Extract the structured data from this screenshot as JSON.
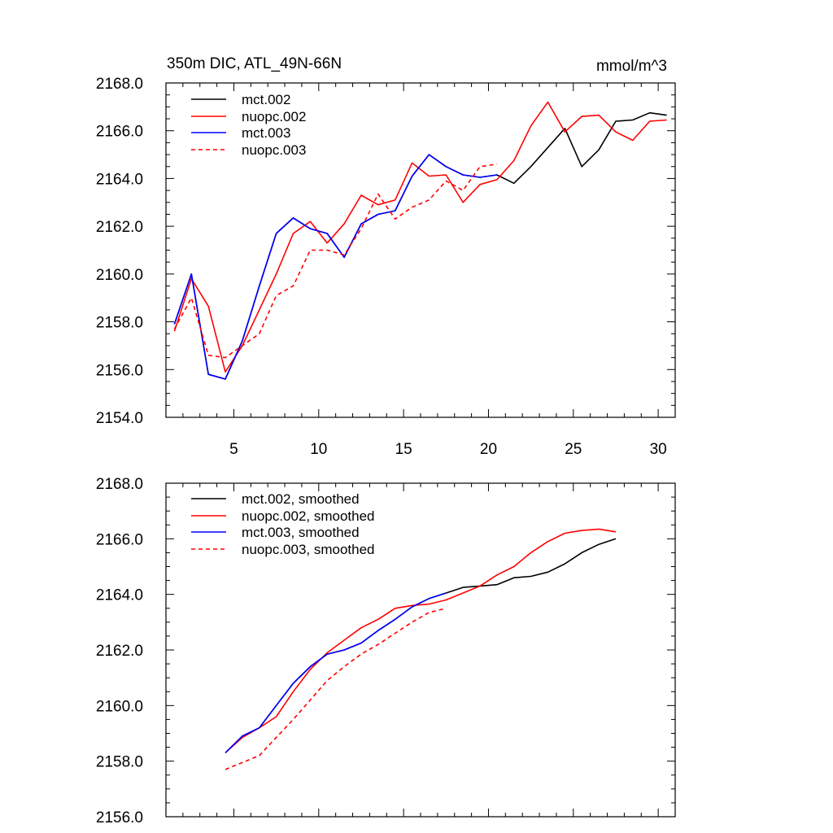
{
  "chart_data": [
    {
      "type": "line",
      "title": "350m DIC, ATL_49N-66N",
      "units": "mmol/m^3",
      "xlabel": "",
      "ylabel": "",
      "xlim": [
        1,
        31
      ],
      "ylim": [
        2154,
        2168
      ],
      "xticks": [
        5,
        10,
        15,
        20,
        25,
        30
      ],
      "xtick_labels": [
        "5",
        "10",
        "15",
        "20",
        "25",
        "30"
      ],
      "yticks": [
        2154,
        2156,
        2158,
        2160,
        2162,
        2164,
        2166,
        2168
      ],
      "ytick_labels": [
        "2154.0",
        "2156.0",
        "2158.0",
        "2160.0",
        "2162.0",
        "2164.0",
        "2166.0",
        "2168.0"
      ],
      "legend_position": "top-left",
      "series": [
        {
          "name": "mct.002",
          "color": "#000000",
          "dash": "solid",
          "x": [
            1.5,
            2.5,
            3.5,
            4.5,
            5.5,
            6.5,
            7.5,
            8.5,
            9.5,
            10.5,
            11.5,
            12.5,
            13.5,
            14.5,
            15.5,
            16.5,
            17.5,
            18.5,
            19.5,
            20.5,
            21.5,
            22.5,
            23.5,
            24.5,
            25.5,
            26.5,
            27.5,
            28.5,
            29.5,
            30.5
          ],
          "values": [
            2157.9,
            2160.0,
            2155.8,
            2155.6,
            2157.2,
            2159.5,
            2161.7,
            2162.35,
            2161.9,
            2161.7,
            2160.7,
            2162.1,
            2162.5,
            2162.65,
            2164.1,
            2165.0,
            2164.5,
            2164.15,
            2164.05,
            2164.15,
            2163.8,
            2164.5,
            2165.3,
            2166.1,
            2164.5,
            2165.2,
            2166.4,
            2166.45,
            2166.75,
            2166.65
          ]
        },
        {
          "name": "nuopc.002",
          "color": "#ff0000",
          "dash": "solid",
          "x": [
            1.5,
            2.5,
            3.5,
            4.5,
            5.5,
            6.5,
            7.5,
            8.5,
            9.5,
            10.5,
            11.5,
            12.5,
            13.5,
            14.5,
            15.5,
            16.5,
            17.5,
            18.5,
            19.5,
            20.5,
            21.5,
            22.5,
            23.5,
            24.5,
            25.5,
            26.5,
            27.5,
            28.5,
            29.5,
            30.5
          ],
          "values": [
            2157.6,
            2159.8,
            2158.65,
            2155.9,
            2157.0,
            2158.5,
            2160.0,
            2161.7,
            2162.2,
            2161.3,
            2162.1,
            2163.3,
            2162.9,
            2163.1,
            2164.65,
            2164.1,
            2164.15,
            2163.0,
            2163.75,
            2163.95,
            2164.75,
            2166.2,
            2167.2,
            2165.95,
            2166.6,
            2166.65,
            2165.95,
            2165.6,
            2166.4,
            2166.45
          ]
        },
        {
          "name": "mct.003",
          "color": "#0000ff",
          "dash": "solid",
          "x": [
            1.5,
            2.5,
            3.5,
            4.5,
            5.5,
            6.5,
            7.5,
            8.5,
            9.5,
            10.5,
            11.5,
            12.5,
            13.5,
            14.5,
            15.5,
            16.5,
            17.5,
            18.5,
            19.5,
            20.5
          ],
          "values": [
            2157.9,
            2160.0,
            2155.8,
            2155.6,
            2157.2,
            2159.5,
            2161.7,
            2162.35,
            2161.9,
            2161.7,
            2160.7,
            2162.1,
            2162.5,
            2162.65,
            2164.1,
            2165.0,
            2164.5,
            2164.15,
            2164.05,
            2164.15
          ]
        },
        {
          "name": "nuopc.003",
          "color": "#ff0000",
          "dash": "dashed",
          "x": [
            1.5,
            2.5,
            3.5,
            4.5,
            5.5,
            6.5,
            7.5,
            8.5,
            9.5,
            10.5,
            11.5,
            12.5,
            13.5,
            14.5,
            15.5,
            16.5,
            17.5,
            18.5,
            19.5,
            20.5
          ],
          "values": [
            2157.7,
            2159.0,
            2156.6,
            2156.5,
            2157.0,
            2157.5,
            2159.1,
            2159.5,
            2161.0,
            2161.0,
            2160.8,
            2161.9,
            2163.35,
            2162.3,
            2162.8,
            2163.1,
            2163.9,
            2163.5,
            2164.5,
            2164.6
          ]
        }
      ]
    },
    {
      "type": "line",
      "title": "",
      "xlabel": "",
      "ylabel": "",
      "xlim": [
        1,
        31
      ],
      "ylim": [
        2156,
        2168
      ],
      "xticks": [
        5,
        10,
        15,
        20,
        25,
        30
      ],
      "yticks": [
        2156,
        2158,
        2160,
        2162,
        2164,
        2166,
        2168
      ],
      "ytick_labels": [
        "2156.0",
        "2158.0",
        "2160.0",
        "2162.0",
        "2164.0",
        "2166.0",
        "2168.0"
      ],
      "legend_position": "top-left",
      "series": [
        {
          "name": "mct.002, smoothed",
          "color": "#000000",
          "dash": "solid",
          "x": [
            4.5,
            5.5,
            6.5,
            7.5,
            8.5,
            9.5,
            10.5,
            11.5,
            12.5,
            13.5,
            14.5,
            15.5,
            16.5,
            17.5,
            18.5,
            19.5,
            20.5,
            21.5,
            22.5,
            23.5,
            24.5,
            25.5,
            26.5,
            27.5
          ],
          "values": [
            2158.3,
            2158.9,
            2159.2,
            2160.0,
            2160.8,
            2161.4,
            2161.85,
            2162.0,
            2162.25,
            2162.7,
            2163.1,
            2163.55,
            2163.85,
            2164.05,
            2164.25,
            2164.3,
            2164.35,
            2164.6,
            2164.65,
            2164.8,
            2165.1,
            2165.5,
            2165.8,
            2166.0
          ]
        },
        {
          "name": "nuopc.002, smoothed",
          "color": "#ff0000",
          "dash": "solid",
          "x": [
            4.5,
            5.5,
            6.5,
            7.5,
            8.5,
            9.5,
            10.5,
            11.5,
            12.5,
            13.5,
            14.5,
            15.5,
            16.5,
            17.5,
            18.5,
            19.5,
            20.5,
            21.5,
            22.5,
            23.5,
            24.5,
            25.5,
            26.5,
            27.5
          ],
          "values": [
            2158.3,
            2158.85,
            2159.2,
            2159.6,
            2160.5,
            2161.3,
            2161.9,
            2162.35,
            2162.8,
            2163.1,
            2163.5,
            2163.6,
            2163.65,
            2163.8,
            2164.05,
            2164.3,
            2164.7,
            2165.0,
            2165.5,
            2165.9,
            2166.2,
            2166.3,
            2166.35,
            2166.25
          ]
        },
        {
          "name": "mct.003, smoothed",
          "color": "#0000ff",
          "dash": "solid",
          "x": [
            4.5,
            5.5,
            6.5,
            7.5,
            8.5,
            9.5,
            10.5,
            11.5,
            12.5,
            13.5,
            14.5,
            15.5,
            16.5,
            17.5
          ],
          "values": [
            2158.3,
            2158.9,
            2159.2,
            2160.0,
            2160.8,
            2161.4,
            2161.85,
            2162.0,
            2162.25,
            2162.7,
            2163.1,
            2163.55,
            2163.85,
            2164.05
          ]
        },
        {
          "name": "nuopc.003, smoothed",
          "color": "#ff0000",
          "dash": "dashed",
          "x": [
            4.5,
            5.5,
            6.5,
            7.5,
            8.5,
            9.5,
            10.5,
            11.5,
            12.5,
            13.5,
            14.5,
            15.5,
            16.5,
            17.5
          ],
          "values": [
            2157.7,
            2157.95,
            2158.2,
            2158.85,
            2159.5,
            2160.2,
            2160.9,
            2161.4,
            2161.85,
            2162.2,
            2162.6,
            2163.0,
            2163.35,
            2163.5
          ]
        }
      ]
    }
  ]
}
